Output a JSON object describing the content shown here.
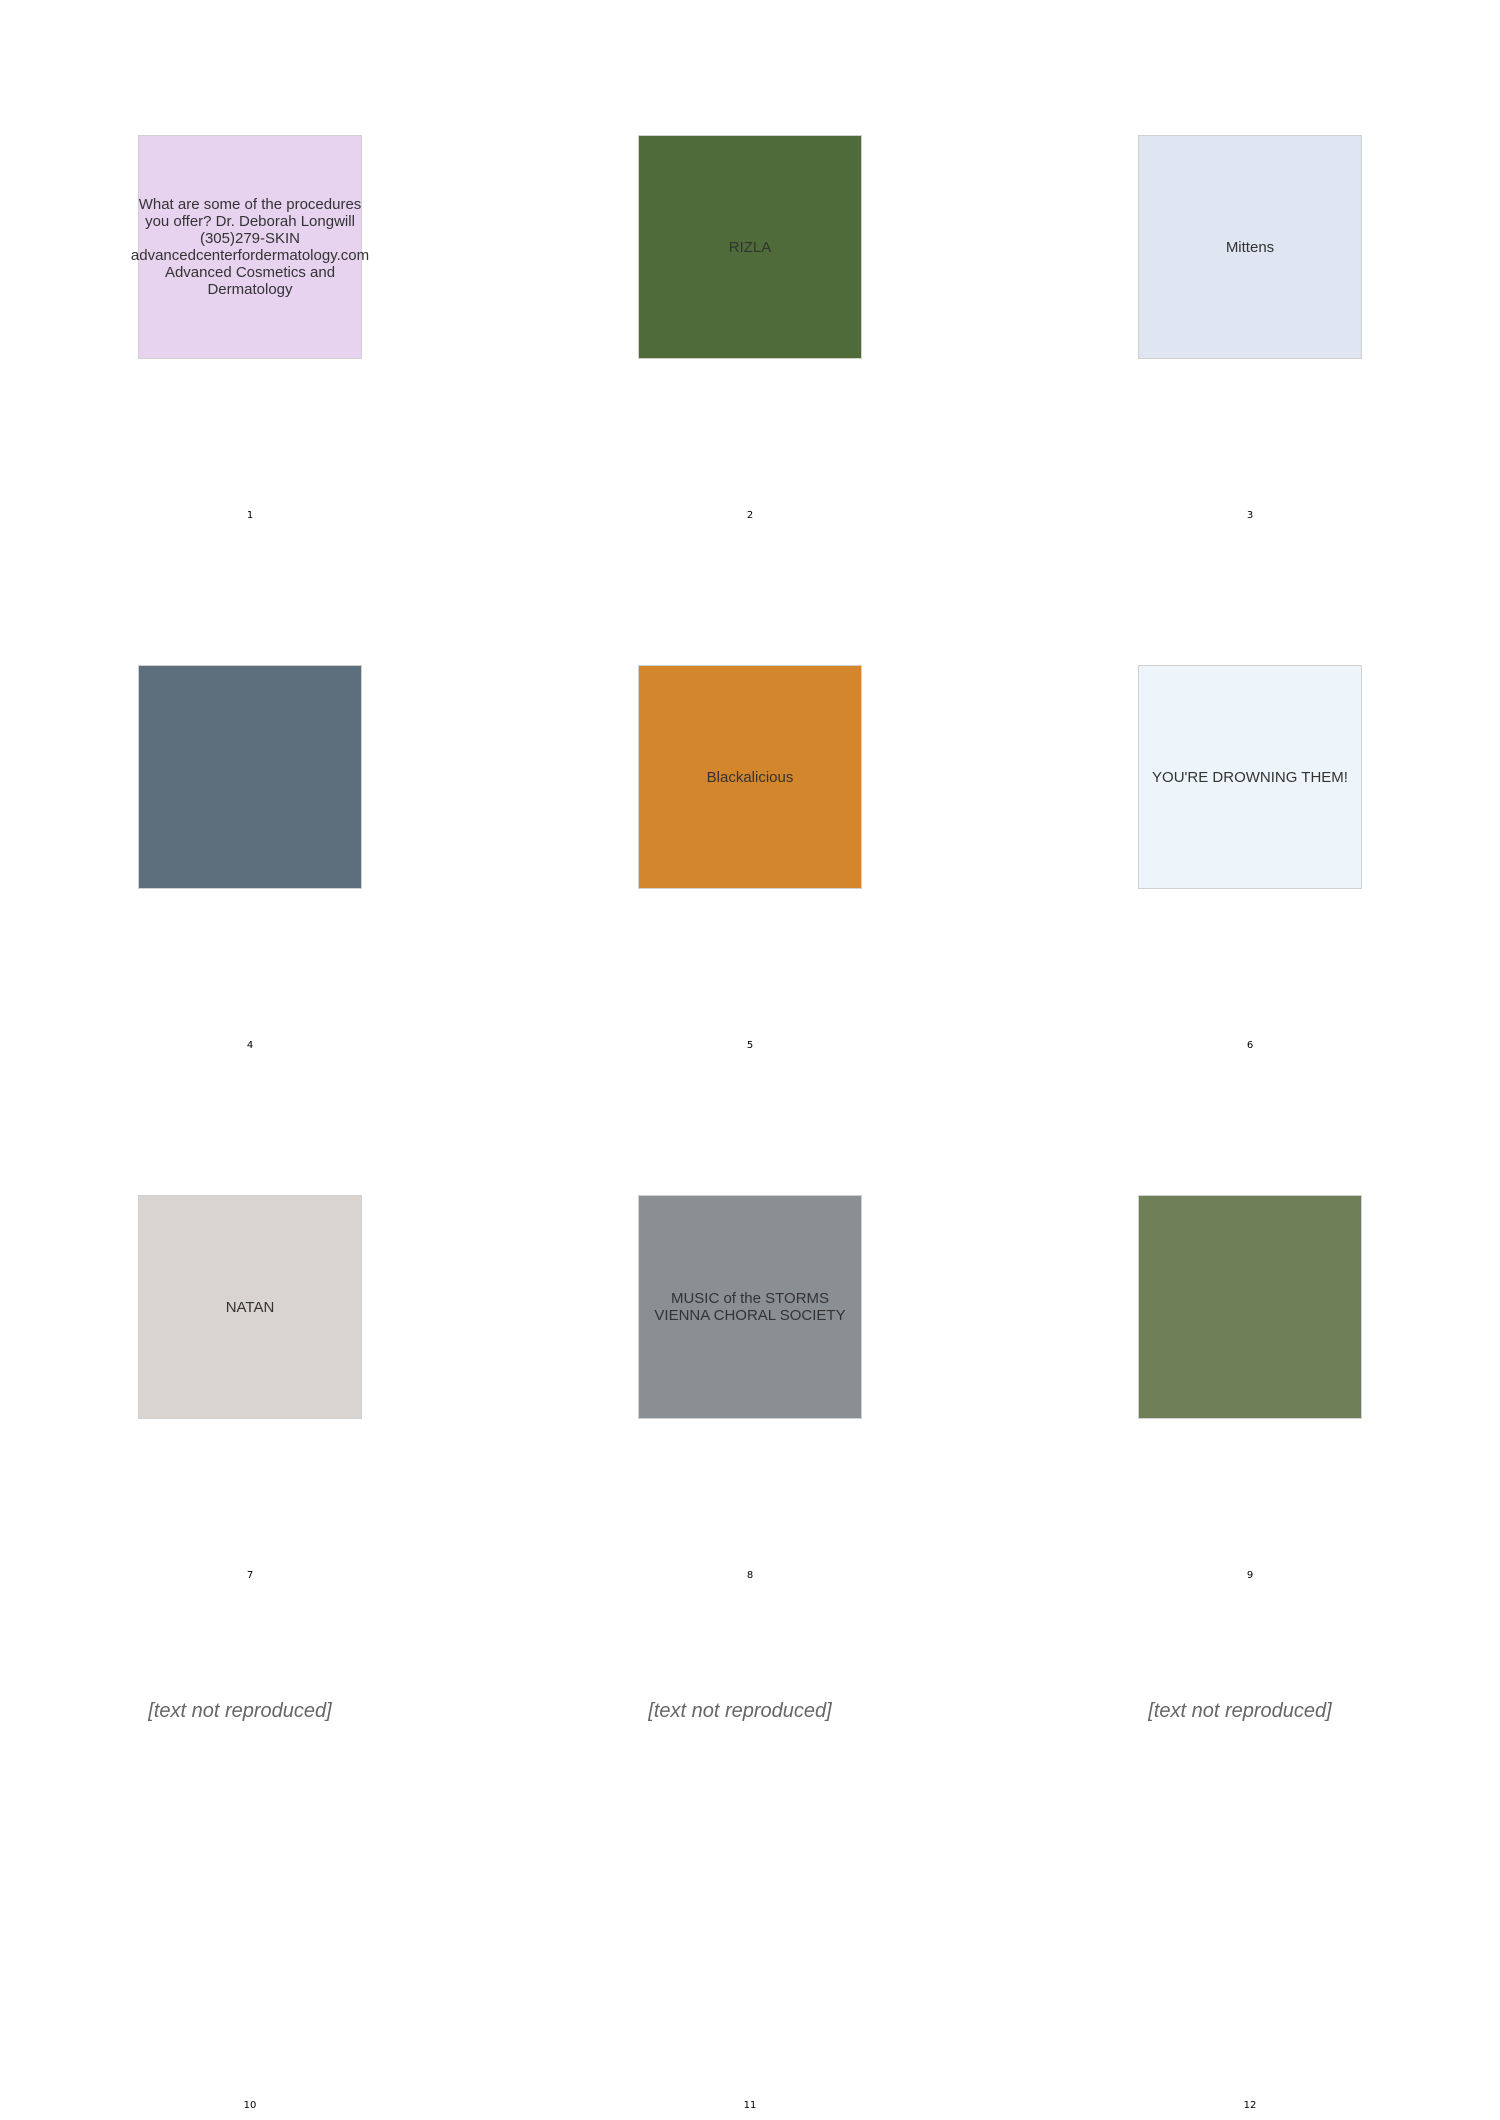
{
  "panels": [
    {
      "number": "1",
      "caption": "What are some of the procedures you offer? Dr. Deborah Longwill (305)279-SKIN advancedcenterfordermatology.com Advanced Cosmetics and Dermatology",
      "bg": "#e7d3ef"
    },
    {
      "number": "2",
      "caption": "RIZLA",
      "bg": "#4f6b3a"
    },
    {
      "number": "3",
      "caption": "Mittens",
      "bg": "#dfe6f2"
    },
    {
      "number": "4",
      "caption": "",
      "bg": "#5d6f7d"
    },
    {
      "number": "5",
      "caption": "Blackalicious",
      "bg": "#d4862c"
    },
    {
      "number": "6",
      "caption": "YOU'RE DROWNING THEM!",
      "bg": "#eef5fa"
    },
    {
      "number": "7",
      "caption": "NATAN",
      "bg": "#d9d4cf"
    },
    {
      "number": "8",
      "caption": "MUSIC of the STORMS VIENNA CHORAL SOCIETY",
      "bg": "#8a8f94"
    },
    {
      "number": "9",
      "caption": "",
      "bg": "#6f7f57"
    },
    {
      "number": "10",
      "caption": "",
      "bg": "#ffffff"
    },
    {
      "number": "11",
      "caption": "",
      "bg": "#ffffff"
    },
    {
      "number": "12",
      "caption": "",
      "bg": "#ffffff"
    }
  ],
  "withheld_note": "[text not reproduced]"
}
